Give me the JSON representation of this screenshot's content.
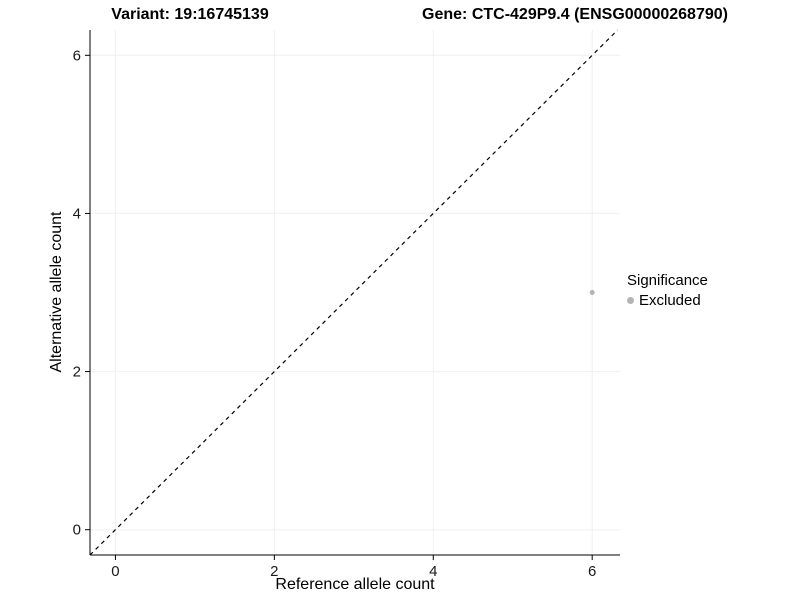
{
  "chart_data": {
    "type": "scatter",
    "titles": {
      "left": "Variant: 19:16745139",
      "right": "Gene: CTC-429P9.4 (ENSG00000268790)"
    },
    "xlabel": "Reference allele count",
    "ylabel": "Alternative allele count",
    "xlim": [
      -0.32,
      6.35
    ],
    "ylim": [
      -0.32,
      6.32
    ],
    "xticks": [
      0,
      2,
      4,
      6
    ],
    "yticks": [
      0,
      2,
      4,
      6
    ],
    "grid": true,
    "points": [
      {
        "x": 6,
        "y": 3,
        "series": "Excluded"
      }
    ],
    "identity_line": {
      "style": "dashed",
      "equation": "y = x",
      "color": "#000000"
    },
    "legend": {
      "title": "Significance",
      "position": "right",
      "items": [
        {
          "label": "Excluded",
          "color": "#b4b4b4"
        }
      ]
    },
    "colors": {
      "point": "#b4b4b4",
      "axis": "#000000",
      "tick_label": "#1a1a1a",
      "grid": "#f0f0f0",
      "panel_background": "#ffffff"
    }
  }
}
